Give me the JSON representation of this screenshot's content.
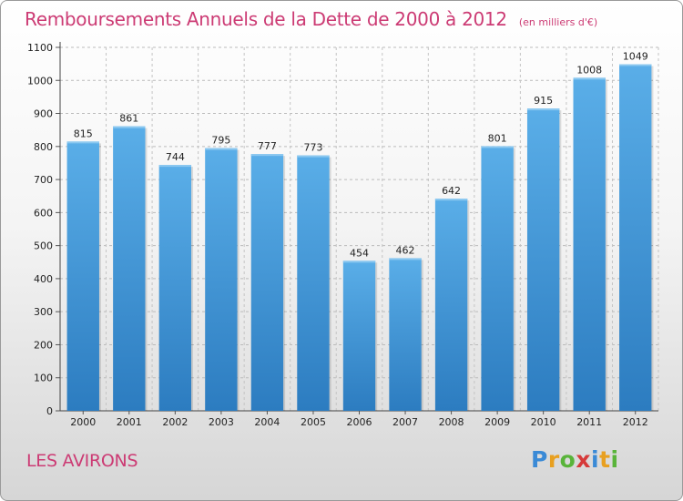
{
  "chart_data": {
    "type": "bar",
    "title": "Remboursements Annuels de la Dette de 2000 à 2012",
    "subtitle": "(en milliers d'€)",
    "xlabel": "",
    "ylabel": "",
    "categories": [
      "2000",
      "2001",
      "2002",
      "2003",
      "2004",
      "2005",
      "2006",
      "2007",
      "2008",
      "2009",
      "2010",
      "2011",
      "2012"
    ],
    "values": [
      815,
      861,
      744,
      795,
      777,
      773,
      454,
      462,
      642,
      801,
      915,
      1008,
      1049
    ],
    "value_labels": [
      "815",
      "861",
      "744",
      "795",
      "777",
      "773",
      "454",
      "462",
      "642",
      "801",
      "915",
      "1008",
      "1049"
    ],
    "y_ticks": [
      "0",
      "100",
      "200",
      "300",
      "400",
      "500",
      "600",
      "700",
      "800",
      "900",
      "1000",
      "1100"
    ],
    "ylim": [
      0,
      1100
    ],
    "grid": true
  },
  "footer": {
    "location": "LES AVIRONS"
  },
  "logo": {
    "letters": [
      "P",
      "r",
      "o",
      "x",
      "i",
      "t",
      "i"
    ],
    "colors": [
      "#3a8ad6",
      "#e8a020",
      "#59b43a",
      "#d63a3a",
      "#3a8ad6",
      "#e8a020",
      "#59b43a"
    ]
  },
  "colors": {
    "bar": "#4a9fdf",
    "bar_dark": "#2f7fc4",
    "title": "#cc3b74"
  }
}
